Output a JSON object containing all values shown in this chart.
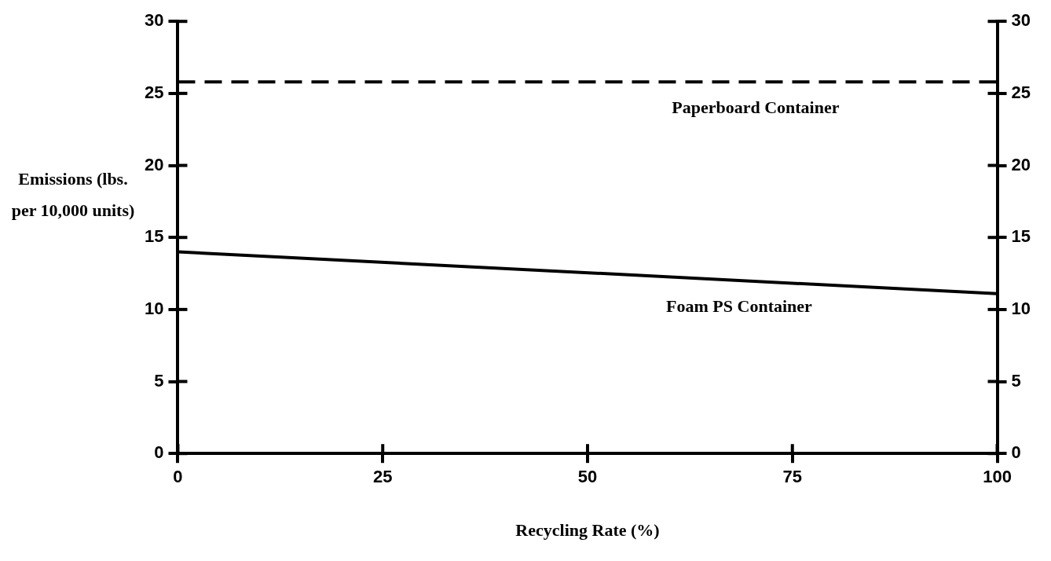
{
  "chart_data": {
    "type": "line",
    "xlabel": "Recycling Rate (%)",
    "ylabel": "Emissions (lbs. per 10,000 units)",
    "x": [
      0,
      100
    ],
    "series": [
      {
        "name": "Paperboard Container",
        "color": "#000000",
        "values": [
          25.8,
          25.8
        ],
        "line_style": "dashed"
      },
      {
        "name": "Foam PS Container",
        "color": "#000000",
        "values": [
          14.0,
          11.1
        ],
        "line_style": "solid"
      }
    ],
    "xlim": [
      0,
      100
    ],
    "xticks": [
      0,
      25,
      50,
      75,
      100
    ],
    "ylim": [
      0,
      30
    ],
    "yticks": [
      0,
      5,
      10,
      15,
      20,
      25,
      30
    ],
    "y2lim": [
      0,
      30
    ],
    "y2ticks": [
      0,
      5,
      10,
      15,
      20,
      25,
      30
    ],
    "grid": false,
    "legend": false,
    "marker": "none"
  }
}
